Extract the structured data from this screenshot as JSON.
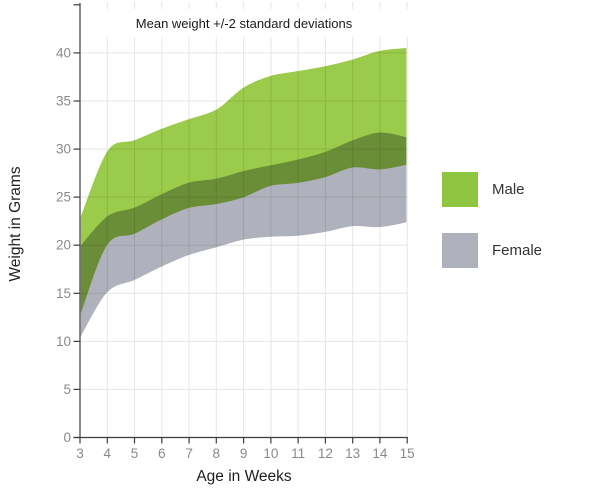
{
  "chart_data": {
    "type": "area",
    "subtype": "range-area",
    "title": "Mean weight +/-2 standard deviations",
    "xlabel": "Age in Weeks",
    "ylabel": "Weight in Grams",
    "xlim": [
      3,
      15
    ],
    "ylim": [
      0,
      45
    ],
    "x_ticks": [
      3,
      4,
      5,
      6,
      7,
      8,
      9,
      10,
      11,
      12,
      13,
      14,
      15
    ],
    "y_ticks": [
      0,
      5,
      10,
      15,
      20,
      25,
      30,
      35,
      40,
      45
    ],
    "y_tick_max_labeled": 40,
    "grid": true,
    "legend_position": "right",
    "weeks": [
      3,
      4,
      5,
      6,
      7,
      8,
      9,
      10,
      11,
      12,
      13,
      14,
      15
    ],
    "series": [
      {
        "name": "Male",
        "color": "#8EC641",
        "area_color": "#9BCB4A",
        "low": [
          12.4,
          19.9,
          21.1,
          22.6,
          23.8,
          24.2,
          24.9,
          26.1,
          26.4,
          27.0,
          28.0,
          27.8,
          28.3
        ],
        "high": [
          23.0,
          29.9,
          31.0,
          32.2,
          33.2,
          34.2,
          36.5,
          37.7,
          38.2,
          38.7,
          39.4,
          40.3,
          40.6
        ]
      },
      {
        "name": "Female",
        "color": "#AEB0BB",
        "area_color": "#AFB1BC",
        "low": [
          10.2,
          15.0,
          16.3,
          17.7,
          18.9,
          19.7,
          20.5,
          20.8,
          20.9,
          21.3,
          21.9,
          21.8,
          22.3
        ],
        "high": [
          20.0,
          23.1,
          24.0,
          25.4,
          26.6,
          27.0,
          27.8,
          28.4,
          29.0,
          29.8,
          31.0,
          31.8,
          31.3
        ]
      }
    ],
    "colors": {
      "male": "#8EC641",
      "female": "#AEB0BB",
      "overlap": "#6F9733",
      "band_edge_stroke": "#FFFFFF",
      "axis": "#3d3d3d",
      "grid": "#e5e5e5",
      "tick_label": "#8a8a8a",
      "text": "#1b1b1b"
    }
  }
}
